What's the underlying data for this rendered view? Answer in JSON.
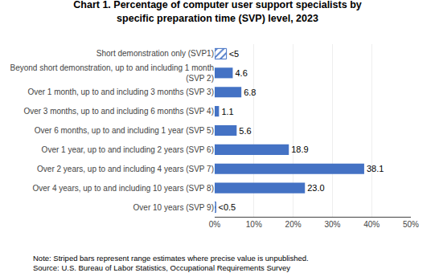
{
  "chart_data": {
    "type": "bar",
    "orientation": "horizontal",
    "title": "Chart 1. Percentage of computer user support specialists by\nspecific preparation time (SVP) level, 2023",
    "categories": [
      "Over 10 years (SVP 9)",
      "Over 4 years, up to and including 10 years (SVP 8)",
      "Over 2 years, up to and including 4 years (SVP 7)",
      "Over 1 year, up to and including 2 years (SVP 6)",
      "Over 6 months, up to and including 1 year (SVP 5)",
      "Over 3 months, up to and including 6 months (SVP 4)",
      "Over 1 month, up to and including 3 months (SVP 3)",
      "Beyond short demonstration, up to and including 1 month\n(SVP 2)",
      "Short demonstration only (SVP1)"
    ],
    "series": [
      {
        "color": "#4472c4",
        "values": [
          null,
          23.0,
          38.1,
          18.9,
          5.6,
          1.1,
          6.8,
          4.6,
          null
        ],
        "value_labels": [
          null,
          "23.0",
          "38.1",
          "18.9",
          "5.6",
          "1.1",
          "6.8",
          "4.6",
          null
        ]
      },
      {
        "color": "#4472c4",
        "marker": "hatch",
        "values": [
          0.3,
          null,
          null,
          null,
          null,
          null,
          null,
          null,
          3.0
        ],
        "value_labels": [
          "<0.5",
          null,
          null,
          null,
          null,
          null,
          null,
          null,
          "<5"
        ]
      }
    ],
    "data_labels": true,
    "xlim": [
      0,
      50
    ],
    "xticks": [
      {
        "value": 0,
        "label": "0%"
      },
      {
        "value": 10,
        "label": "10%"
      },
      {
        "value": 20,
        "label": "20%"
      },
      {
        "value": 30,
        "label": "30%"
      },
      {
        "value": 40,
        "label": "40%"
      },
      {
        "value": 50,
        "label": "50%"
      }
    ],
    "grid": true,
    "annotations": [
      "Note: Striped bars represent range estimates where precise value is unpublished.",
      "Source: U.S. Bureau of Labor Statistics, Occupational Requirements Survey"
    ]
  }
}
